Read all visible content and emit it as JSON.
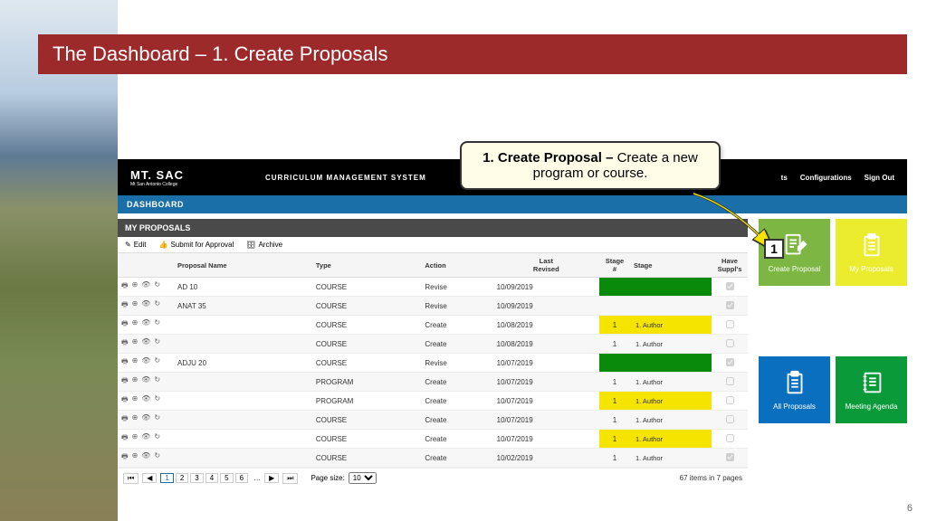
{
  "slide": {
    "title": "The Dashboard – 1. Create Proposals",
    "page_number": "6"
  },
  "callout": {
    "bold": "1. Create Proposal – ",
    "rest": "Create a new program or course."
  },
  "badge": "1",
  "topbar": {
    "logo_main": "MT. SAC",
    "logo_sub": "Mt San Antonio College",
    "system_title": "CURRICULUM MANAGEMENT SYSTEM",
    "nav": [
      "ts",
      "Configurations",
      "Sign Out"
    ]
  },
  "dashboard_label": "DASHBOARD",
  "panel": {
    "title": "MY PROPOSALS",
    "tools": {
      "edit": "Edit",
      "submit": "Submit for Approval",
      "archive": "Archive"
    },
    "columns": [
      "",
      "Proposal Name",
      "Type",
      "Action",
      "Last Revised",
      "Stage #",
      "Stage",
      "Have Suppl's"
    ]
  },
  "rows": [
    {
      "name": "AD 10",
      "type": "COURSE",
      "action": "Revise",
      "date": "10/09/2019",
      "stagenum": "",
      "stage": "",
      "stage_color": "green",
      "suppl": "✓"
    },
    {
      "name": "ANAT 35",
      "type": "COURSE",
      "action": "Revise",
      "date": "10/09/2019",
      "stagenum": "",
      "stage": "",
      "stage_color": "green",
      "suppl": "✓"
    },
    {
      "name": "",
      "type": "COURSE",
      "action": "Create",
      "date": "10/08/2019",
      "stagenum": "1",
      "stage": "1. Author",
      "stage_color": "yellow",
      "suppl": ""
    },
    {
      "name": "",
      "type": "COURSE",
      "action": "Create",
      "date": "10/08/2019",
      "stagenum": "1",
      "stage": "1. Author",
      "stage_color": "yellow",
      "suppl": ""
    },
    {
      "name": "ADJU 20",
      "type": "COURSE",
      "action": "Revise",
      "date": "10/07/2019",
      "stagenum": "",
      "stage": "",
      "stage_color": "green",
      "suppl": "✓"
    },
    {
      "name": "",
      "type": "PROGRAM",
      "action": "Create",
      "date": "10/07/2019",
      "stagenum": "1",
      "stage": "1. Author",
      "stage_color": "yellow",
      "suppl": ""
    },
    {
      "name": "",
      "type": "PROGRAM",
      "action": "Create",
      "date": "10/07/2019",
      "stagenum": "1",
      "stage": "1. Author",
      "stage_color": "yellow",
      "suppl": ""
    },
    {
      "name": "",
      "type": "COURSE",
      "action": "Create",
      "date": "10/07/2019",
      "stagenum": "1",
      "stage": "1. Author",
      "stage_color": "yellow",
      "suppl": ""
    },
    {
      "name": "",
      "type": "COURSE",
      "action": "Create",
      "date": "10/07/2019",
      "stagenum": "1",
      "stage": "1. Author",
      "stage_color": "yellow",
      "suppl": ""
    },
    {
      "name": "",
      "type": "COURSE",
      "action": "Create",
      "date": "10/02/2019",
      "stagenum": "1",
      "stage": "1. Author",
      "stage_color": "yellow",
      "suppl": "✓"
    }
  ],
  "pager": {
    "pages": [
      "1",
      "2",
      "3",
      "4",
      "5",
      "6"
    ],
    "active": "1",
    "size_label": "Page size:",
    "size_value": "10",
    "info": "67 items in 7 pages"
  },
  "tiles": [
    {
      "label": "Create Proposal",
      "color": "green",
      "icon": "compose"
    },
    {
      "label": "My Proposals",
      "color": "yellow",
      "icon": "clipboard"
    },
    {
      "label": "All Proposals",
      "color": "blue",
      "icon": "clipboard"
    },
    {
      "label": "Meeting Agenda",
      "color": "dgreen",
      "icon": "notebook"
    }
  ]
}
